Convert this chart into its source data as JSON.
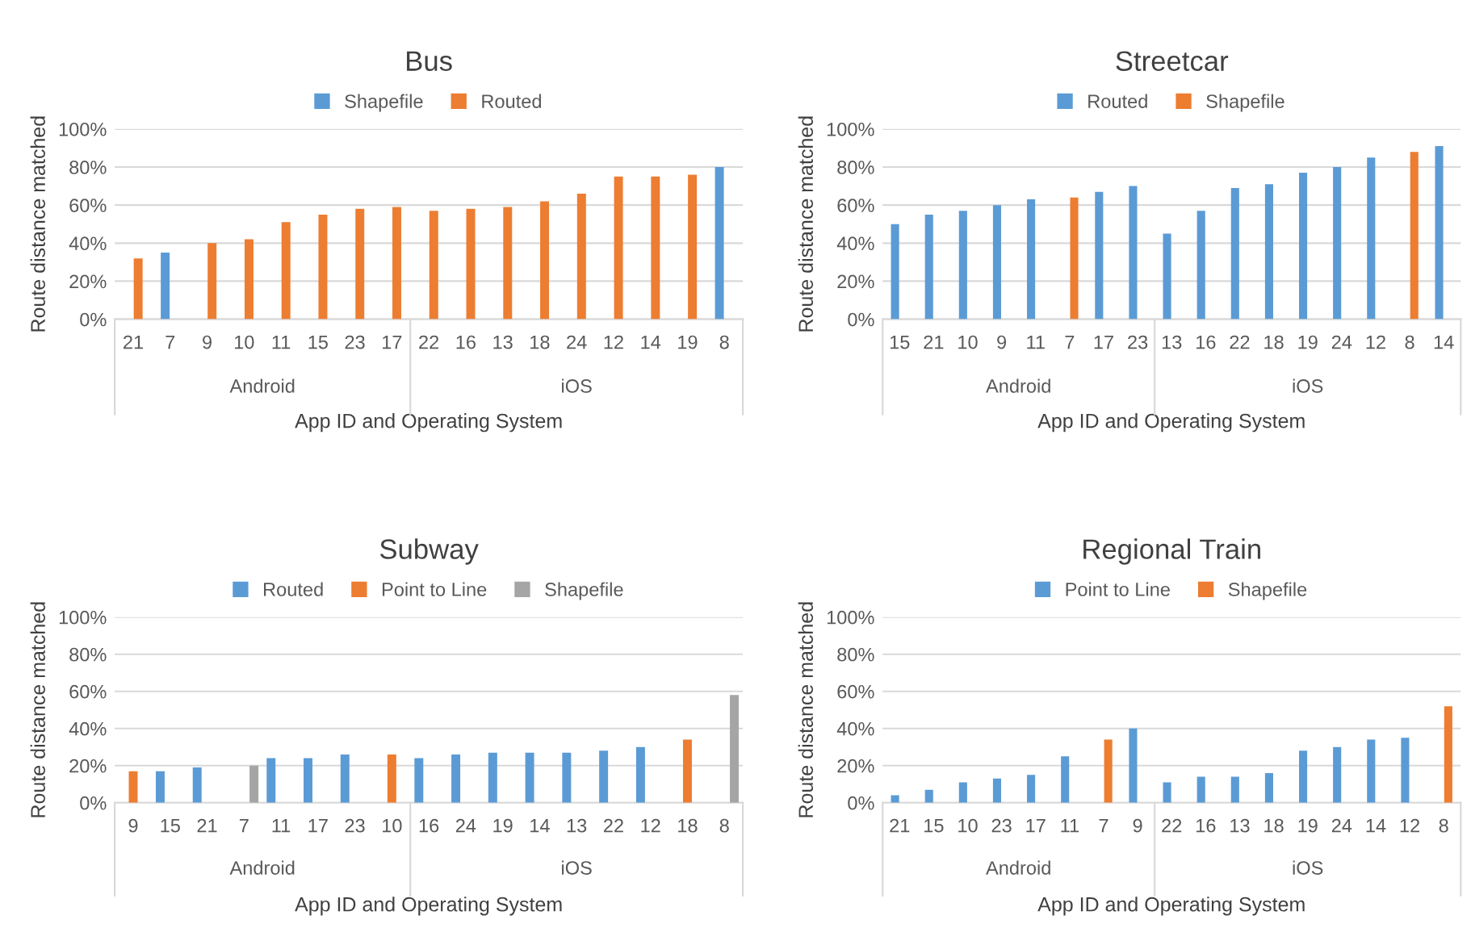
{
  "chart_data": [
    {
      "type": "bar",
      "title": "Bus",
      "xlabel": "App ID and Operating System",
      "ylabel": "Route distance matched",
      "legend": "top",
      "grid": "y",
      "categories": [
        "21",
        "7",
        "9",
        "10",
        "11",
        "15",
        "23",
        "17",
        "22",
        "16",
        "13",
        "18",
        "24",
        "12",
        "14",
        "19",
        "8"
      ],
      "annotations": [
        "Android",
        "iOS"
      ],
      "ylim": [
        0,
        100
      ],
      "yticks": [
        {
          "value": 0,
          "label": "0%"
        },
        {
          "value": 20,
          "label": "20%"
        },
        {
          "value": 40,
          "label": "40%"
        },
        {
          "value": 60,
          "label": "60%"
        },
        {
          "value": 80,
          "label": "80%"
        },
        {
          "value": 100,
          "label": "100%"
        }
      ],
      "series": [
        {
          "name": "Shapefile",
          "color": "#5b9bd5",
          "values": [
            null,
            35,
            null,
            null,
            null,
            null,
            null,
            null,
            null,
            null,
            null,
            null,
            null,
            null,
            null,
            null,
            80
          ]
        },
        {
          "name": "Routed",
          "color": "#ed7d31",
          "values": [
            32,
            null,
            40,
            42,
            51,
            55,
            58,
            59,
            57,
            58,
            59,
            62,
            66,
            75,
            75,
            76,
            null
          ]
        }
      ]
    },
    {
      "type": "bar",
      "title": "Streetcar",
      "xlabel": "App ID and Operating System",
      "ylabel": "Route distance matched",
      "legend": "top",
      "grid": "y",
      "categories": [
        "15",
        "21",
        "10",
        "9",
        "11",
        "7",
        "17",
        "23",
        "13",
        "16",
        "22",
        "18",
        "19",
        "24",
        "12",
        "8",
        "14"
      ],
      "annotations": [
        "Android",
        "iOS"
      ],
      "ylim": [
        0,
        100
      ],
      "yticks": [
        {
          "value": 0,
          "label": "0%"
        },
        {
          "value": 20,
          "label": "20%"
        },
        {
          "value": 40,
          "label": "40%"
        },
        {
          "value": 60,
          "label": "60%"
        },
        {
          "value": 80,
          "label": "80%"
        },
        {
          "value": 100,
          "label": "100%"
        }
      ],
      "series": [
        {
          "name": "Routed",
          "color": "#5b9bd5",
          "values": [
            50,
            55,
            57,
            60,
            63,
            null,
            67,
            70,
            45,
            57,
            69,
            71,
            77,
            80,
            85,
            null,
            91
          ]
        },
        {
          "name": "Shapefile",
          "color": "#ed7d31",
          "values": [
            null,
            null,
            null,
            null,
            null,
            64,
            null,
            null,
            null,
            null,
            null,
            null,
            null,
            null,
            null,
            88,
            null
          ]
        }
      ]
    },
    {
      "type": "bar",
      "title": "Subway",
      "xlabel": "App ID and Operating System",
      "ylabel": "Route distance matched",
      "legend": "top",
      "grid": "y",
      "categories": [
        "9",
        "15",
        "21",
        "7",
        "11",
        "17",
        "23",
        "10",
        "16",
        "24",
        "19",
        "14",
        "13",
        "22",
        "12",
        "18",
        "8"
      ],
      "annotations": [
        "Android",
        "iOS"
      ],
      "ylim": [
        0,
        100
      ],
      "yticks": [
        {
          "value": 0,
          "label": "0%"
        },
        {
          "value": 20,
          "label": "20%"
        },
        {
          "value": 40,
          "label": "40%"
        },
        {
          "value": 60,
          "label": "60%"
        },
        {
          "value": 80,
          "label": "80%"
        },
        {
          "value": 100,
          "label": "100%"
        }
      ],
      "series": [
        {
          "name": "Routed",
          "color": "#5b9bd5",
          "values": [
            null,
            17,
            19,
            null,
            24,
            24,
            26,
            null,
            24,
            26,
            27,
            27,
            27,
            28,
            30,
            null,
            null
          ]
        },
        {
          "name": "Point to Line",
          "color": "#ed7d31",
          "values": [
            17,
            null,
            null,
            null,
            null,
            null,
            null,
            26,
            null,
            null,
            null,
            null,
            null,
            null,
            null,
            34,
            null
          ]
        },
        {
          "name": "Shapefile",
          "color": "#a5a5a5",
          "values": [
            null,
            null,
            null,
            20,
            null,
            null,
            null,
            null,
            null,
            null,
            null,
            null,
            null,
            null,
            null,
            null,
            58
          ]
        }
      ]
    },
    {
      "type": "bar",
      "title": "Regional Train",
      "xlabel": "App ID and Operating System",
      "ylabel": "Route distance matched",
      "legend": "top",
      "grid": "y",
      "categories": [
        "21",
        "15",
        "10",
        "23",
        "17",
        "11",
        "7",
        "9",
        "22",
        "16",
        "13",
        "18",
        "19",
        "24",
        "14",
        "12",
        "8"
      ],
      "annotations": [
        "Android",
        "iOS"
      ],
      "ylim": [
        0,
        100
      ],
      "yticks": [
        {
          "value": 0,
          "label": "0%"
        },
        {
          "value": 20,
          "label": "20%"
        },
        {
          "value": 40,
          "label": "40%"
        },
        {
          "value": 60,
          "label": "60%"
        },
        {
          "value": 80,
          "label": "80%"
        },
        {
          "value": 100,
          "label": "100%"
        }
      ],
      "series": [
        {
          "name": "Point to Line",
          "color": "#5b9bd5",
          "values": [
            4,
            7,
            11,
            13,
            15,
            25,
            null,
            40,
            11,
            14,
            14,
            16,
            28,
            30,
            34,
            35,
            null
          ]
        },
        {
          "name": "Shapefile",
          "color": "#ed7d31",
          "values": [
            null,
            null,
            null,
            null,
            null,
            null,
            34,
            null,
            null,
            null,
            null,
            null,
            null,
            null,
            null,
            null,
            52
          ]
        }
      ]
    }
  ]
}
